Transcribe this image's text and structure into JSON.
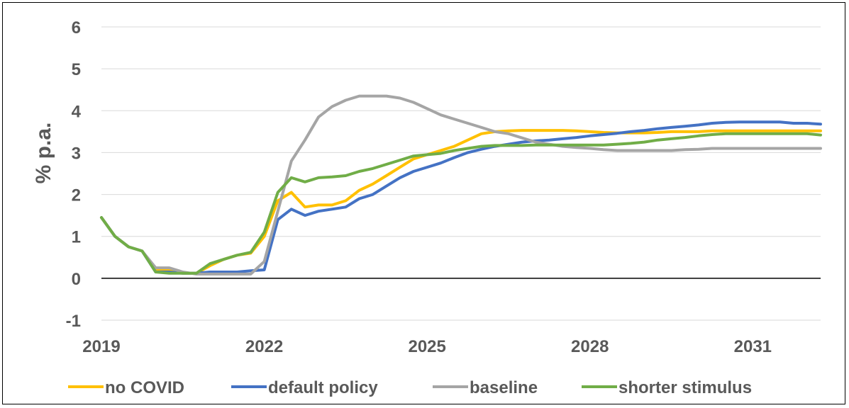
{
  "chart_data": {
    "type": "line",
    "title": "",
    "xlabel": "",
    "ylabel": "% p.a.",
    "ylim": [
      -1,
      6
    ],
    "yticks": [
      -1,
      0,
      1,
      2,
      3,
      4,
      5,
      6
    ],
    "xlim": [
      2019,
      2032.25
    ],
    "xticks": [
      "2019",
      "2022",
      "2025",
      "2028",
      "2031"
    ],
    "grid": true,
    "legend_position": "bottom",
    "x": [
      2019,
      2019.25,
      2019.5,
      2019.75,
      2020,
      2020.25,
      2020.5,
      2020.75,
      2021,
      2021.25,
      2021.5,
      2021.75,
      2022,
      2022.25,
      2022.5,
      2022.75,
      2023,
      2023.25,
      2023.5,
      2023.75,
      2024,
      2024.25,
      2024.5,
      2024.75,
      2025,
      2025.25,
      2025.5,
      2025.75,
      2026,
      2026.25,
      2026.5,
      2026.75,
      2027,
      2027.25,
      2027.5,
      2027.75,
      2028,
      2028.25,
      2028.5,
      2028.75,
      2029,
      2029.25,
      2029.5,
      2029.75,
      2030,
      2030.25,
      2030.5,
      2030.75,
      2031,
      2031.25,
      2031.5,
      2031.75,
      2032,
      2032.25
    ],
    "series": [
      {
        "name": "no COVID",
        "color": "#FFC000",
        "values": [
          1.45,
          1.0,
          0.75,
          0.65,
          0.2,
          0.2,
          0.12,
          0.12,
          0.3,
          0.45,
          0.55,
          0.6,
          1.0,
          1.85,
          2.05,
          1.7,
          1.75,
          1.75,
          1.85,
          2.1,
          2.25,
          2.45,
          2.65,
          2.85,
          2.95,
          3.05,
          3.15,
          3.3,
          3.45,
          3.5,
          3.52,
          3.53,
          3.53,
          3.53,
          3.53,
          3.52,
          3.5,
          3.48,
          3.47,
          3.47,
          3.47,
          3.48,
          3.5,
          3.5,
          3.5,
          3.52,
          3.52,
          3.52,
          3.52,
          3.52,
          3.52,
          3.52,
          3.52,
          3.52
        ]
      },
      {
        "name": "default policy",
        "color": "#4472C4",
        "values": [
          1.45,
          1.0,
          0.75,
          0.65,
          0.15,
          0.15,
          0.12,
          0.12,
          0.15,
          0.15,
          0.15,
          0.18,
          0.2,
          1.4,
          1.65,
          1.5,
          1.6,
          1.65,
          1.7,
          1.9,
          2.0,
          2.2,
          2.4,
          2.55,
          2.65,
          2.75,
          2.88,
          3.0,
          3.08,
          3.15,
          3.2,
          3.25,
          3.28,
          3.3,
          3.33,
          3.36,
          3.4,
          3.43,
          3.46,
          3.5,
          3.53,
          3.57,
          3.6,
          3.63,
          3.66,
          3.7,
          3.72,
          3.73,
          3.73,
          3.73,
          3.73,
          3.7,
          3.7,
          3.68
        ]
      },
      {
        "name": "baseline",
        "color": "#A5A5A5",
        "values": [
          1.45,
          1.0,
          0.75,
          0.65,
          0.25,
          0.25,
          0.15,
          0.1,
          0.1,
          0.1,
          0.1,
          0.1,
          0.4,
          1.6,
          2.8,
          3.3,
          3.85,
          4.1,
          4.25,
          4.35,
          4.35,
          4.35,
          4.3,
          4.2,
          4.05,
          3.9,
          3.8,
          3.7,
          3.6,
          3.5,
          3.45,
          3.35,
          3.25,
          3.2,
          3.15,
          3.12,
          3.1,
          3.07,
          3.05,
          3.05,
          3.05,
          3.05,
          3.05,
          3.07,
          3.08,
          3.1,
          3.1,
          3.1,
          3.1,
          3.1,
          3.1,
          3.1,
          3.1,
          3.1
        ]
      },
      {
        "name": "shorter stimulus",
        "color": "#70AD47",
        "values": [
          1.45,
          1.0,
          0.75,
          0.65,
          0.15,
          0.12,
          0.12,
          0.12,
          0.35,
          0.45,
          0.55,
          0.62,
          1.1,
          2.05,
          2.4,
          2.3,
          2.4,
          2.42,
          2.45,
          2.55,
          2.62,
          2.72,
          2.82,
          2.92,
          2.95,
          2.98,
          3.05,
          3.1,
          3.15,
          3.17,
          3.17,
          3.17,
          3.18,
          3.18,
          3.18,
          3.18,
          3.18,
          3.18,
          3.2,
          3.22,
          3.25,
          3.3,
          3.33,
          3.36,
          3.4,
          3.43,
          3.45,
          3.45,
          3.45,
          3.45,
          3.45,
          3.45,
          3.45,
          3.42
        ]
      }
    ]
  }
}
